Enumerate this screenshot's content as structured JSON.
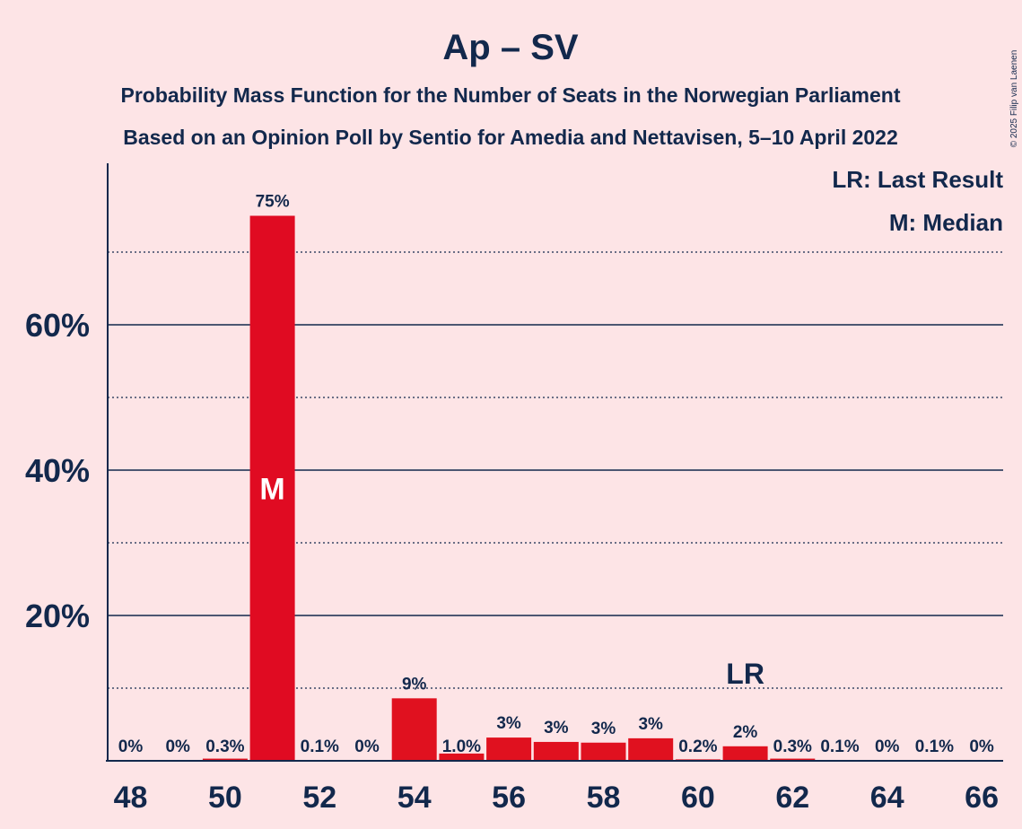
{
  "copyright": "© 2025 Filip van Laenen",
  "chart_data": {
    "type": "bar",
    "title": "Ap – SV",
    "subtitle1": "Probability Mass Function for the Number of Seats in the Norwegian Parliament",
    "subtitle2": "Based on an Opinion Poll by Sentio for Amedia and Nettavisen, 5–10 April 2022",
    "legend": {
      "lr": "LR: Last Result",
      "m": "M: Median",
      "placement": "top-right"
    },
    "x": [
      48,
      49,
      50,
      51,
      52,
      53,
      54,
      55,
      56,
      57,
      58,
      59,
      60,
      61,
      62,
      63,
      64,
      65,
      66
    ],
    "values": [
      0,
      0,
      0.3,
      75,
      0.1,
      0,
      8.6,
      1.0,
      3.2,
      2.6,
      2.5,
      3.1,
      0.2,
      2.0,
      0.3,
      0.1,
      0,
      0.1,
      0
    ],
    "labels": [
      "0%",
      "0%",
      "0.3%",
      "75%",
      "0.1%",
      "0%",
      "9%",
      "1.0%",
      "3%",
      "3%",
      "3%",
      "3%",
      "0.2%",
      "2%",
      "0.3%",
      "0.1%",
      "0%",
      "0.1%",
      "0%"
    ],
    "x_ticks": [
      "48",
      "50",
      "52",
      "54",
      "56",
      "58",
      "60",
      "62",
      "64",
      "66"
    ],
    "y_ticks": [
      {
        "value": 20,
        "label": "20%"
      },
      {
        "value": 40,
        "label": "40%"
      },
      {
        "value": 60,
        "label": "60%"
      }
    ],
    "minor_gridlines": [
      10,
      30,
      50,
      70
    ],
    "ylim": [
      0,
      82
    ],
    "median_seat": 51,
    "median_marker": "M",
    "last_result_seat": 61,
    "last_result_marker": "LR",
    "colors": {
      "bar": "#e0111f",
      "median_bar": "#e00b22",
      "text": "#12284c",
      "background": "#fde4e6"
    }
  }
}
